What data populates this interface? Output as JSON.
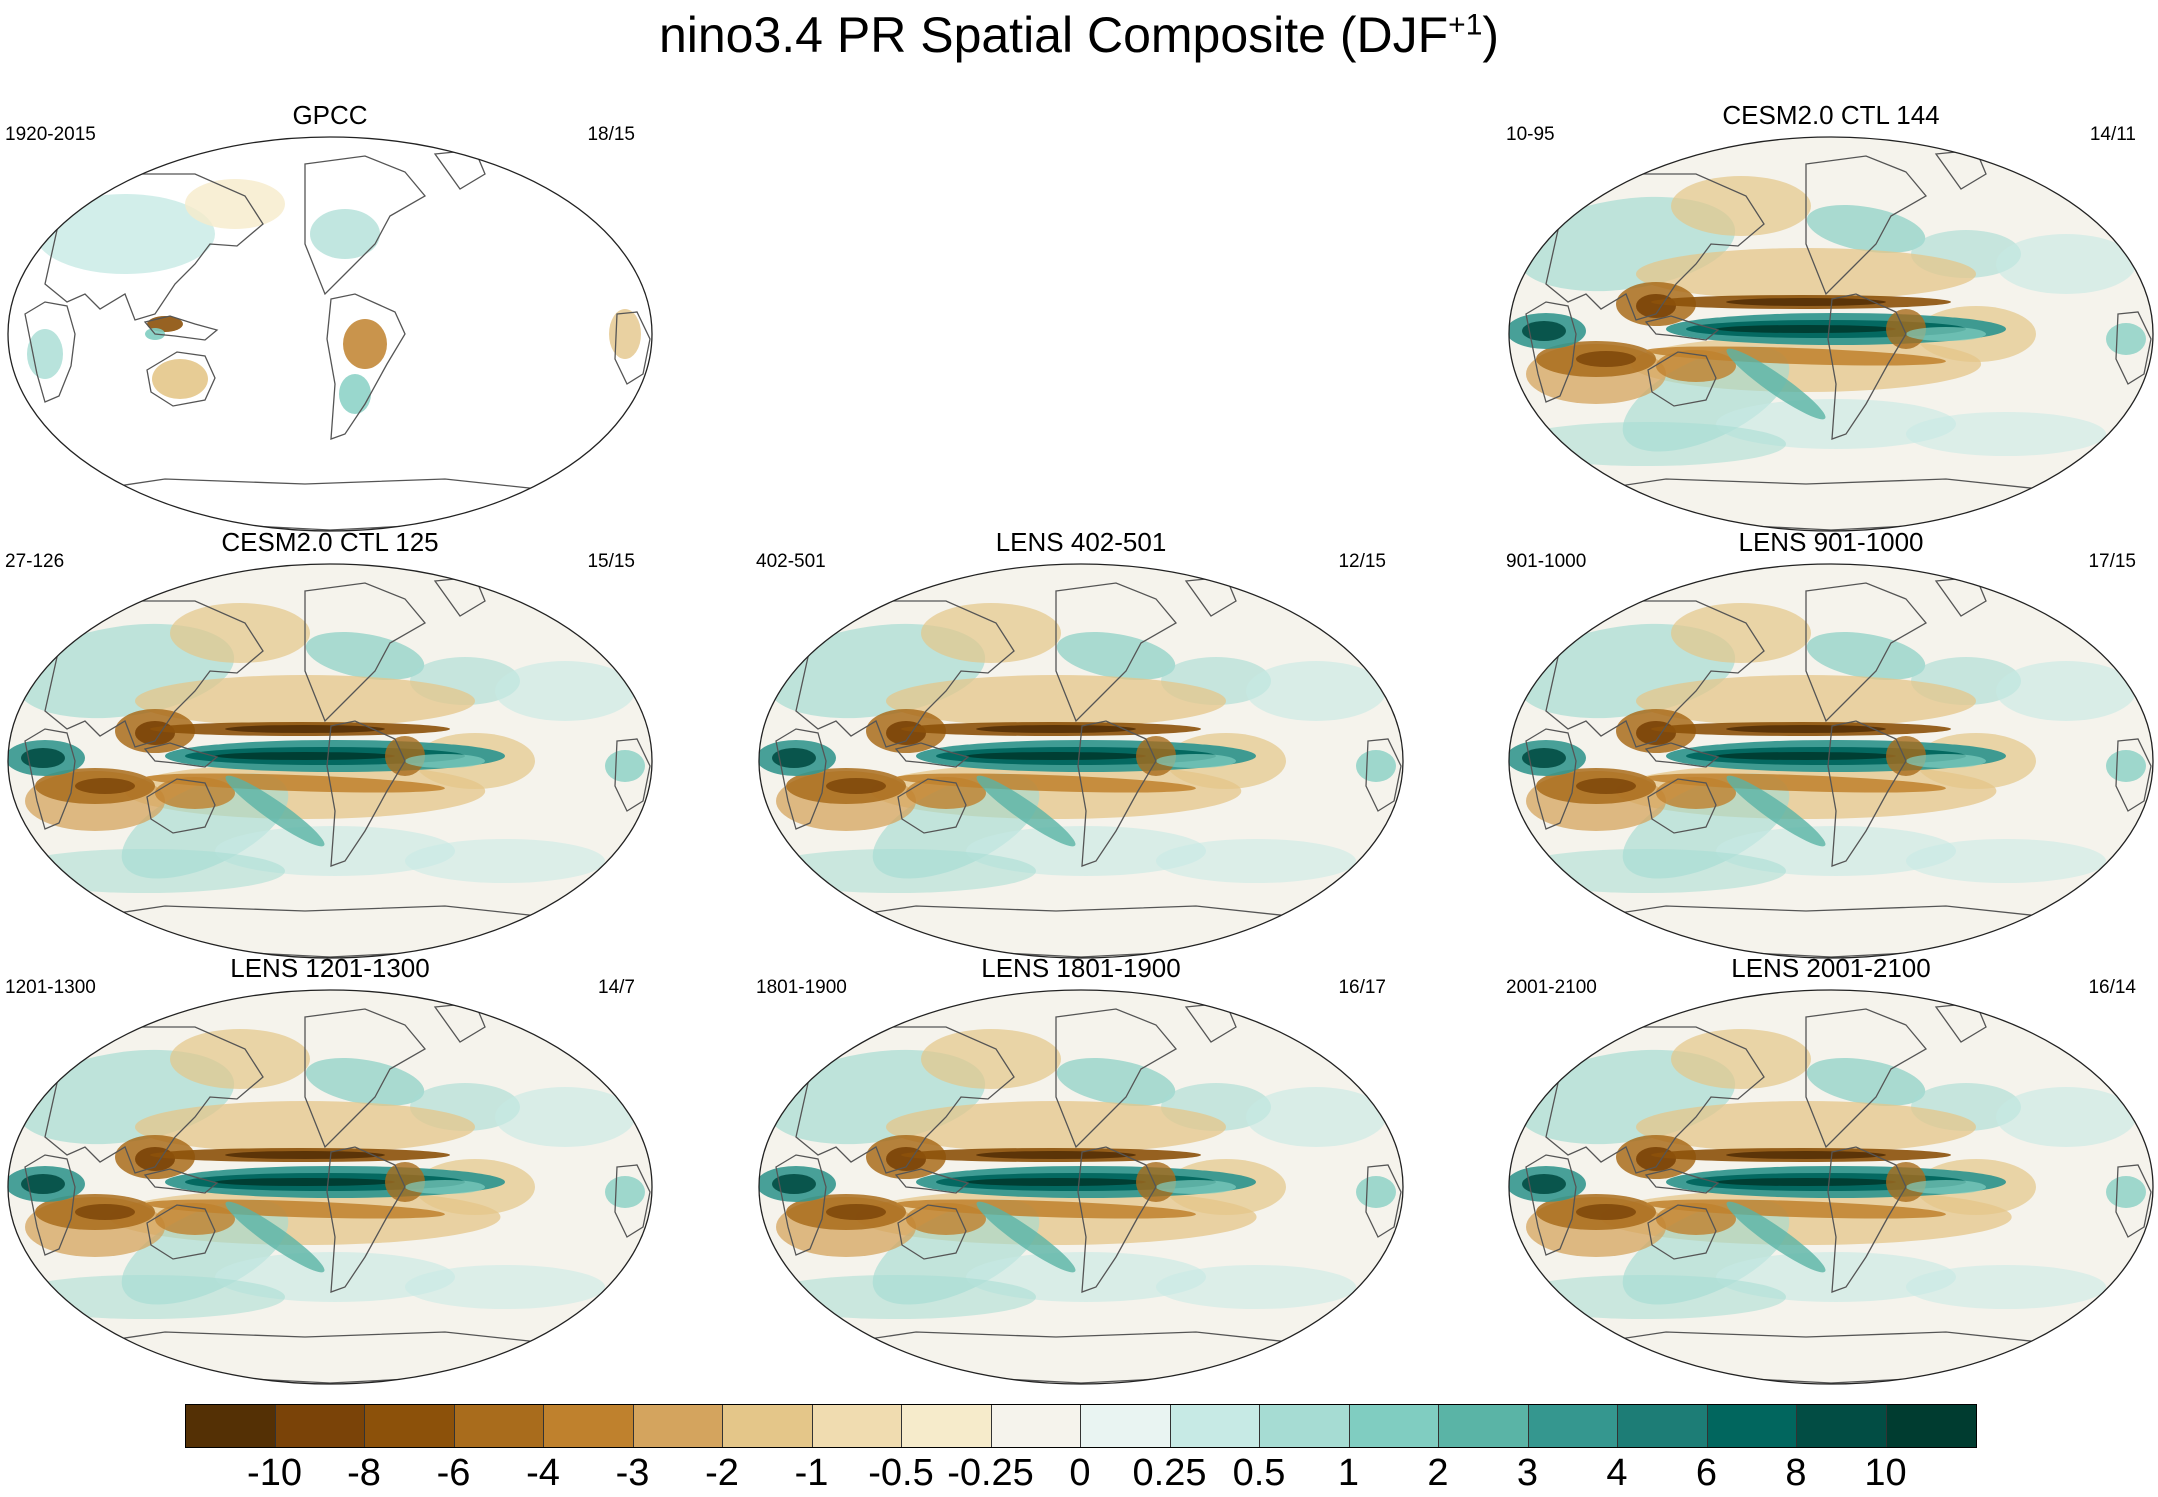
{
  "figure": {
    "title_main": "nino3.4 PR Spatial Composite (DJF",
    "title_sup": "+1",
    "title_end": ")"
  },
  "panels": [
    {
      "id": "gpcc",
      "title": "GPCC",
      "left_text": "1920-2015",
      "right_text": "18/15",
      "kind": "obs"
    },
    {
      "id": "cesm144",
      "title": "CESM2.0 CTL 144",
      "left_text": "10-95",
      "right_text": "14/11",
      "kind": "model"
    },
    {
      "id": "cesm125",
      "title": "CESM2.0 CTL 125",
      "left_text": "27-126",
      "right_text": "15/15",
      "kind": "model"
    },
    {
      "id": "lens402",
      "title": "LENS 402-501",
      "left_text": "402-501",
      "right_text": "12/15",
      "kind": "model"
    },
    {
      "id": "lens901",
      "title": "LENS 901-1000",
      "left_text": "901-1000",
      "right_text": "17/15",
      "kind": "model"
    },
    {
      "id": "lens1201",
      "title": "LENS 1201-1300",
      "left_text": "1201-1300",
      "right_text": "14/7",
      "kind": "model"
    },
    {
      "id": "lens1801",
      "title": "LENS 1801-1900",
      "left_text": "1801-1900",
      "right_text": "16/17",
      "kind": "model"
    },
    {
      "id": "lens2001",
      "title": "LENS 2001-2100",
      "left_text": "2001-2100",
      "right_text": "16/14",
      "kind": "model"
    }
  ],
  "colorbar": {
    "colors": [
      "#543005",
      "#7a4308",
      "#8c510a",
      "#a96c1c",
      "#bf812d",
      "#d4a45e",
      "#e4c689",
      "#f0dcb0",
      "#f6ebcb",
      "#f5f3ec",
      "#e9f4f2",
      "#c7eae5",
      "#a6dcd3",
      "#80cdc1",
      "#5ab4a6",
      "#35978f",
      "#1d7d76",
      "#01665e",
      "#024d44",
      "#003c30"
    ],
    "labels": [
      "-10",
      "-8",
      "-6",
      "-4",
      "-3",
      "-2",
      "-1",
      "-0.5",
      "-0.25",
      "0",
      "0.25",
      "0.5",
      "1",
      "2",
      "3",
      "4",
      "6",
      "8",
      "10"
    ]
  }
}
